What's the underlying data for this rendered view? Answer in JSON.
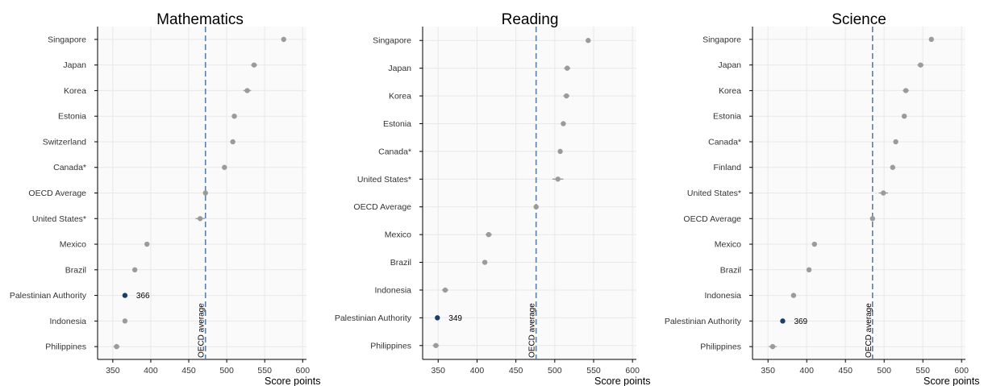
{
  "chart_data": [
    {
      "type": "scatter",
      "title": "Mathematics",
      "xlabel": "Score points",
      "xlim": [
        330,
        605
      ],
      "xticks": [
        350,
        400,
        450,
        500,
        550,
        600
      ],
      "reference_line": {
        "value": 472,
        "label": "OECD average"
      },
      "highlight": {
        "category": "Palestinian Authority",
        "label": "366"
      },
      "categories": [
        "Singapore",
        "Japan",
        "Korea",
        "Estonia",
        "Switzerland",
        "Canada*",
        "OECD Average",
        "United States*",
        "Mexico",
        "Brazil",
        "Palestinian Authority",
        "Indonesia",
        "Philippines"
      ],
      "values": [
        575,
        536,
        527,
        510,
        508,
        497,
        472,
        465,
        395,
        379,
        366,
        366,
        355
      ],
      "errors": [
        2,
        4,
        5,
        2,
        3,
        2,
        1,
        6,
        3,
        2,
        2,
        3,
        4
      ]
    },
    {
      "type": "scatter",
      "title": "Reading",
      "xlabel": "Score points",
      "xlim": [
        330,
        605
      ],
      "xticks": [
        350,
        400,
        450,
        500,
        550,
        600
      ],
      "reference_line": {
        "value": 476,
        "label": "OECD average"
      },
      "highlight": {
        "category": "Palestinian Authority",
        "label": "349"
      },
      "categories": [
        "Singapore",
        "Japan",
        "Korea",
        "Estonia",
        "Canada*",
        "United States*",
        "OECD Average",
        "Mexico",
        "Brazil",
        "Indonesia",
        "Palestinian Authority",
        "Philippines"
      ],
      "values": [
        543,
        516,
        515,
        511,
        507,
        504,
        476,
        415,
        410,
        359,
        349,
        347
      ],
      "errors": [
        2,
        4,
        4,
        2,
        2,
        7,
        1,
        4,
        2,
        4,
        2,
        4
      ]
    },
    {
      "type": "scatter",
      "title": "Science",
      "xlabel": "Score points",
      "xlim": [
        330,
        605
      ],
      "xticks": [
        350,
        400,
        450,
        500,
        550,
        600
      ],
      "reference_line": {
        "value": 485,
        "label": "OECD average"
      },
      "highlight": {
        "category": "Palestinian Authority",
        "label": "369"
      },
      "categories": [
        "Singapore",
        "Japan",
        "Korea",
        "Estonia",
        "Canada*",
        "Finland",
        "United States*",
        "OECD Average",
        "Mexico",
        "Brazil",
        "Indonesia",
        "Palestinian Authority",
        "Philippines"
      ],
      "values": [
        561,
        547,
        528,
        526,
        515,
        511,
        499,
        485,
        410,
        403,
        383,
        369,
        356
      ],
      "errors": [
        2,
        4,
        4,
        2,
        2,
        3,
        6,
        1,
        3,
        2,
        3,
        2,
        5
      ]
    }
  ],
  "colors": {
    "point": "#9b9b9b",
    "highlight_point": "#1a3d6b",
    "reference_line": "#5b7fa6",
    "grid": "#e8e8e8",
    "panel_background": "#fafafa",
    "axis": "#000000"
  }
}
